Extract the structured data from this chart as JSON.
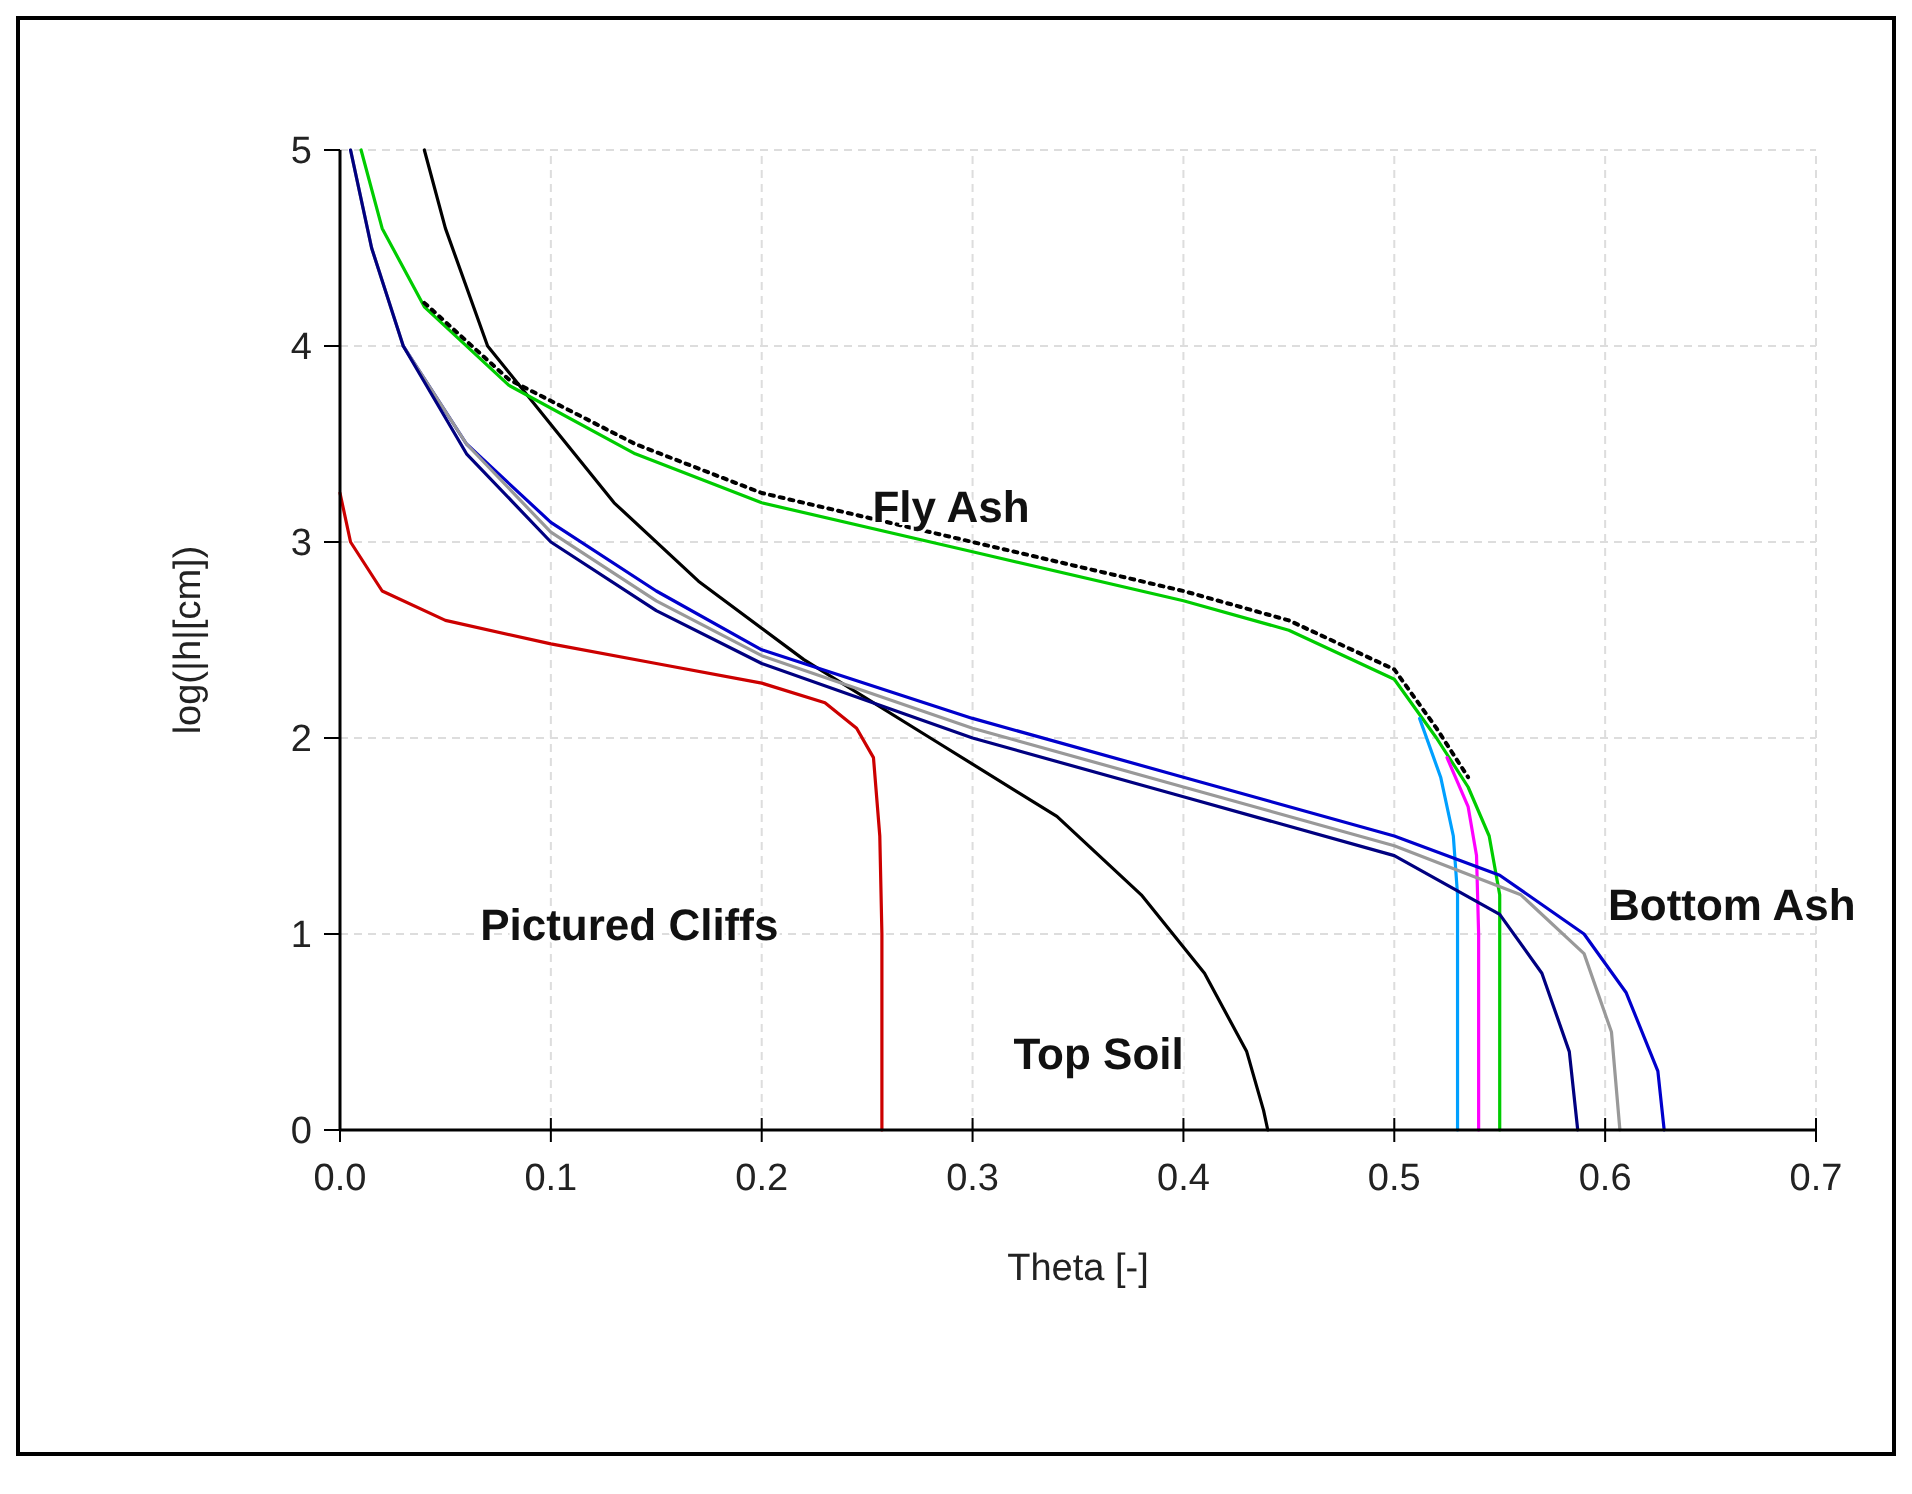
{
  "chart_data": {
    "type": "line",
    "xlabel": "Theta [-]",
    "ylabel": "log(|h|[cm])",
    "xlim": [
      0,
      0.7
    ],
    "ylim": [
      0,
      5
    ],
    "xticks": [
      {
        "value": 0,
        "label": "0.0"
      },
      {
        "value": 0.1,
        "label": "0.1"
      },
      {
        "value": 0.2,
        "label": "0.2"
      },
      {
        "value": 0.3,
        "label": "0.3"
      },
      {
        "value": 0.4,
        "label": "0.4"
      },
      {
        "value": 0.5,
        "label": "0.5"
      },
      {
        "value": 0.6,
        "label": "0.6"
      },
      {
        "value": 0.7,
        "label": "0.7"
      }
    ],
    "yticks": [
      0,
      1,
      2,
      3,
      4,
      5
    ],
    "grid": true,
    "marker": "none",
    "line_style": "solid",
    "series": [
      {
        "color": "#cc0000",
        "x": [
          0,
          0.005,
          0.02,
          0.05,
          0.1,
          0.15,
          0.2,
          0.23,
          0.245,
          0.253,
          0.256,
          0.257,
          0.257
        ],
        "values": [
          3.25,
          3.0,
          2.75,
          2.6,
          2.48,
          2.38,
          2.28,
          2.18,
          2.05,
          1.9,
          1.5,
          1.0,
          0
        ]
      },
      {
        "color": "#000000",
        "x": [
          0.04,
          0.05,
          0.07,
          0.1,
          0.13,
          0.17,
          0.22,
          0.28,
          0.34,
          0.38,
          0.41,
          0.43,
          0.438,
          0.44
        ],
        "values": [
          5.0,
          4.6,
          4.0,
          3.6,
          3.2,
          2.8,
          2.4,
          2.0,
          1.6,
          1.2,
          0.8,
          0.4,
          0.1,
          0
        ]
      },
      {
        "color": "#00cc00",
        "x": [
          0.01,
          0.02,
          0.04,
          0.08,
          0.14,
          0.2,
          0.3,
          0.4,
          0.45,
          0.5,
          0.52,
          0.535,
          0.545,
          0.55,
          0.55
        ],
        "values": [
          5.0,
          4.6,
          4.2,
          3.8,
          3.45,
          3.2,
          2.95,
          2.7,
          2.55,
          2.3,
          2.0,
          1.75,
          1.5,
          1.2,
          0
        ]
      },
      {
        "color": "#ff00ff",
        "x": [
          0.525,
          0.535,
          0.539,
          0.54,
          0.54
        ],
        "values": [
          1.9,
          1.65,
          1.4,
          1.0,
          0
        ]
      },
      {
        "color": "#00a0ff",
        "x": [
          0.512,
          0.522,
          0.528,
          0.53,
          0.53
        ],
        "values": [
          2.1,
          1.8,
          1.5,
          1.2,
          0
        ]
      },
      {
        "color": "#000000",
        "line_style": "dotted",
        "x": [
          0.04,
          0.08,
          0.14,
          0.2,
          0.3,
          0.4,
          0.45,
          0.5,
          0.52,
          0.535
        ],
        "values": [
          4.22,
          3.83,
          3.5,
          3.25,
          3.0,
          2.75,
          2.6,
          2.35,
          2.05,
          1.8
        ]
      },
      {
        "color": "#0000cc",
        "x": [
          0.03,
          0.06,
          0.1,
          0.15,
          0.2,
          0.3,
          0.4,
          0.5,
          0.55,
          0.59,
          0.61,
          0.625,
          0.628
        ],
        "values": [
          4.0,
          3.5,
          3.1,
          2.75,
          2.45,
          2.1,
          1.8,
          1.5,
          1.3,
          1.0,
          0.7,
          0.3,
          0
        ]
      },
      {
        "color": "#999999",
        "x": [
          0.005,
          0.015,
          0.03,
          0.06,
          0.1,
          0.15,
          0.2,
          0.3,
          0.4,
          0.5,
          0.56,
          0.59,
          0.603,
          0.607
        ],
        "values": [
          5.0,
          4.5,
          4.0,
          3.5,
          3.05,
          2.7,
          2.42,
          2.05,
          1.75,
          1.45,
          1.2,
          0.9,
          0.5,
          0
        ]
      },
      {
        "color": "#000080",
        "x": [
          0.005,
          0.015,
          0.03,
          0.06,
          0.1,
          0.15,
          0.2,
          0.3,
          0.4,
          0.5,
          0.55,
          0.57,
          0.583,
          0.587
        ],
        "values": [
          5.0,
          4.5,
          4.0,
          3.45,
          3.0,
          2.65,
          2.38,
          2.0,
          1.7,
          1.4,
          1.1,
          0.8,
          0.4,
          0
        ]
      }
    ],
    "annotations": [
      "Fly Ash",
      "Pictured Cliffs",
      "Top Soil",
      "Bottom Ash"
    ]
  }
}
